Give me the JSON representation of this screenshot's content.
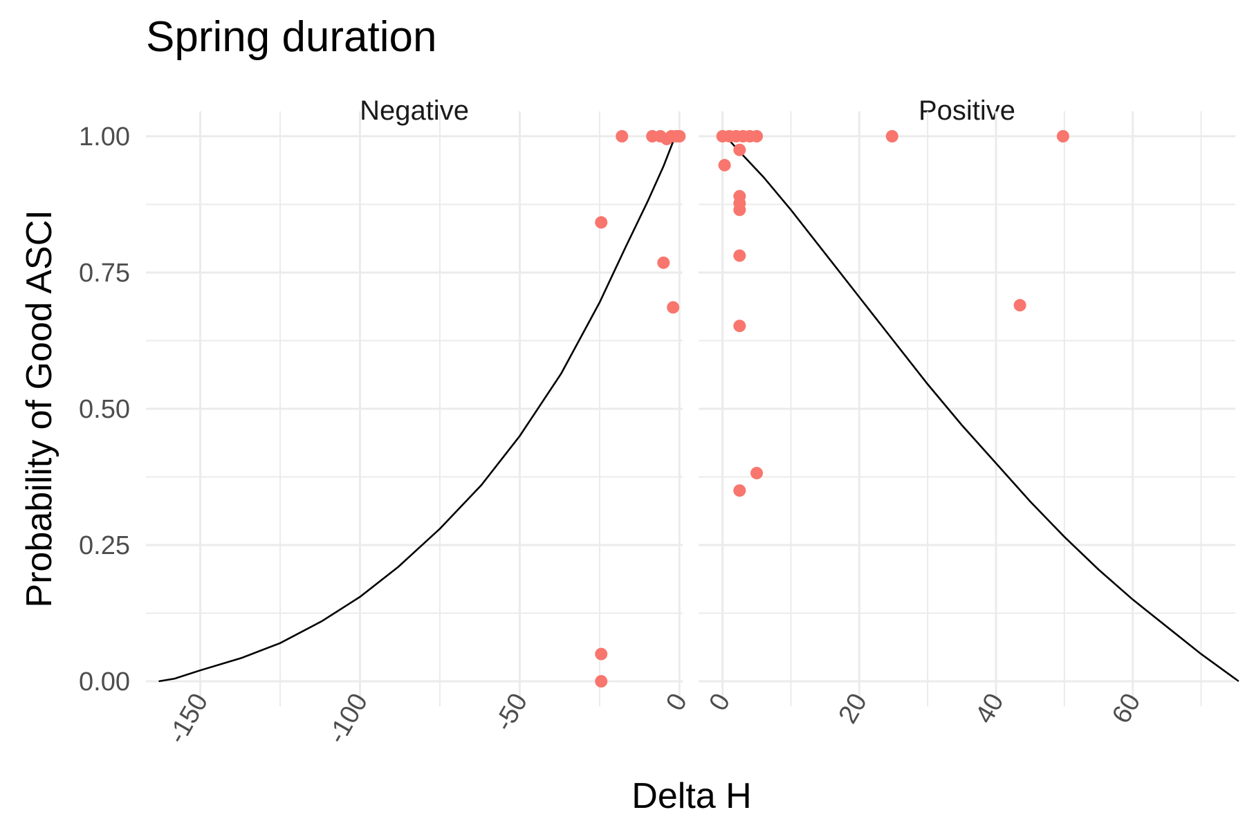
{
  "chart_data": {
    "type": "scatter",
    "title": "Spring duration",
    "xlabel": "Delta H",
    "ylabel": "Probability of Good ASCI",
    "ylim": [
      0,
      1
    ],
    "y_ticks": [
      {
        "value": 0,
        "label": "0.00"
      },
      {
        "value": 0.25,
        "label": "0.25"
      },
      {
        "value": 0.5,
        "label": "0.50"
      },
      {
        "value": 0.75,
        "label": "0.75"
      },
      {
        "value": 1,
        "label": "1.00"
      }
    ],
    "grid": true,
    "point_color": "#F8766D",
    "line_color": "#000000",
    "panels": [
      {
        "facet": "Negative",
        "xlim": [
          -167,
          1
        ],
        "x_ticks": [
          {
            "value": -150,
            "label": "-150"
          },
          {
            "value": -100,
            "label": "-100"
          },
          {
            "value": -50,
            "label": "-50"
          },
          {
            "value": 0,
            "label": "0"
          }
        ],
        "x_minor": [
          -125,
          -75,
          -25
        ],
        "points": [
          {
            "x": -18,
            "y": 1.0
          },
          {
            "x": -8.5,
            "y": 1.0
          },
          {
            "x": -6,
            "y": 1.0
          },
          {
            "x": -4,
            "y": 0.995
          },
          {
            "x": -2.5,
            "y": 1.0
          },
          {
            "x": -1,
            "y": 1.0
          },
          {
            "x": 0,
            "y": 1.0
          },
          {
            "x": -24.5,
            "y": 0.842
          },
          {
            "x": -5,
            "y": 0.768
          },
          {
            "x": -2,
            "y": 0.686
          },
          {
            "x": -24.5,
            "y": 0.05
          },
          {
            "x": -24.5,
            "y": 0.0
          }
        ],
        "curve": [
          [
            -163,
            0.0
          ],
          [
            -158,
            0.005
          ],
          [
            -150,
            0.02
          ],
          [
            -137,
            0.043
          ],
          [
            -125,
            0.07
          ],
          [
            -112,
            0.11
          ],
          [
            -100,
            0.155
          ],
          [
            -88,
            0.21
          ],
          [
            -75,
            0.28
          ],
          [
            -62,
            0.36
          ],
          [
            -50,
            0.45
          ],
          [
            -37,
            0.565
          ],
          [
            -25,
            0.695
          ],
          [
            -17,
            0.795
          ],
          [
            -10,
            0.88
          ],
          [
            -5,
            0.945
          ],
          [
            -2,
            0.99
          ]
        ]
      },
      {
        "facet": "Positive",
        "xlim": [
          -3.5,
          75
        ],
        "x_ticks": [
          {
            "value": 0,
            "label": "0"
          },
          {
            "value": 20,
            "label": "20"
          },
          {
            "value": 40,
            "label": "40"
          },
          {
            "value": 60,
            "label": "60"
          }
        ],
        "x_minor": [
          10,
          30,
          50,
          70
        ],
        "points": [
          {
            "x": 0,
            "y": 1.0
          },
          {
            "x": 1,
            "y": 1.0
          },
          {
            "x": 2,
            "y": 1.0
          },
          {
            "x": 3,
            "y": 1.0
          },
          {
            "x": 4,
            "y": 1.0
          },
          {
            "x": 5,
            "y": 1.0
          },
          {
            "x": 2.5,
            "y": 0.975
          },
          {
            "x": 0.3,
            "y": 0.947
          },
          {
            "x": 2.5,
            "y": 0.89
          },
          {
            "x": 2.5,
            "y": 0.877
          },
          {
            "x": 2.5,
            "y": 0.865
          },
          {
            "x": 2.5,
            "y": 0.781
          },
          {
            "x": 2.5,
            "y": 0.652
          },
          {
            "x": 5,
            "y": 0.382
          },
          {
            "x": 2.5,
            "y": 0.35
          },
          {
            "x": 24.8,
            "y": 1.0
          },
          {
            "x": 49.8,
            "y": 1.0
          },
          {
            "x": 43.5,
            "y": 0.69
          }
        ],
        "curve": [
          [
            0.8,
            0.995
          ],
          [
            3,
            0.965
          ],
          [
            6,
            0.925
          ],
          [
            10,
            0.865
          ],
          [
            15,
            0.785
          ],
          [
            20,
            0.705
          ],
          [
            25,
            0.625
          ],
          [
            30,
            0.545
          ],
          [
            35,
            0.47
          ],
          [
            40,
            0.4
          ],
          [
            45,
            0.33
          ],
          [
            50,
            0.265
          ],
          [
            55,
            0.205
          ],
          [
            60,
            0.15
          ],
          [
            65,
            0.1
          ],
          [
            70,
            0.05
          ],
          [
            75.5,
            0.0
          ]
        ]
      }
    ]
  }
}
